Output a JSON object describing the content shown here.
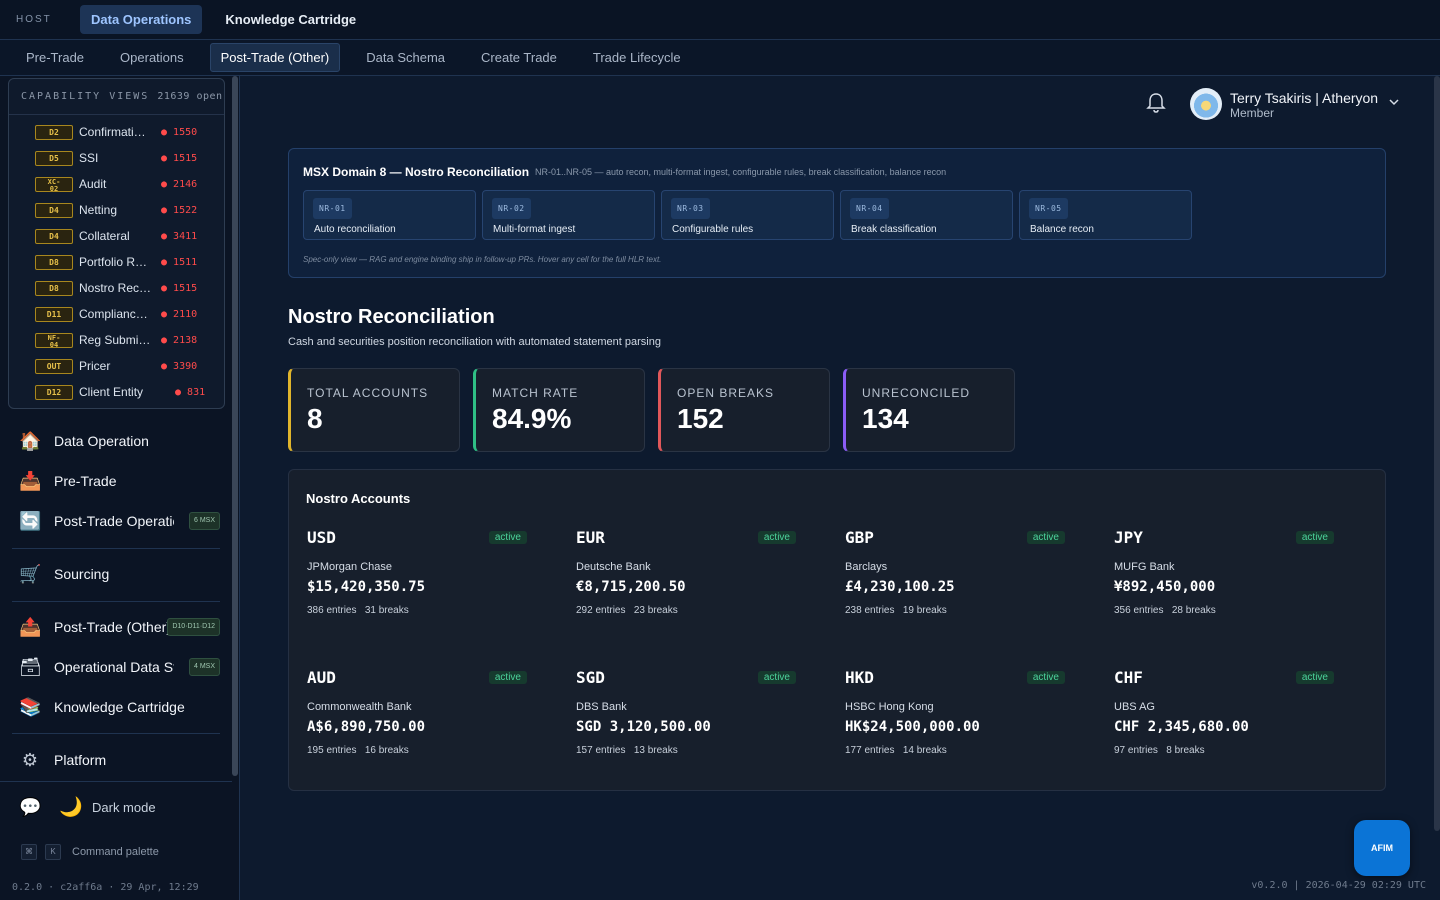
{
  "topbar": {
    "host_label": "HOST",
    "tabs": [
      {
        "label": "Data Operations",
        "active": true
      },
      {
        "label": "Knowledge Cartridge",
        "active": false
      }
    ]
  },
  "subnav": {
    "tabs": [
      {
        "label": "Pre-Trade",
        "active": false
      },
      {
        "label": "Operations",
        "active": false
      },
      {
        "label": "Post-Trade (Other)",
        "active": true
      },
      {
        "label": "Data Schema",
        "active": false
      },
      {
        "label": "Create Trade",
        "active": false
      },
      {
        "label": "Trade Lifecycle",
        "active": false
      }
    ]
  },
  "capability": {
    "title": "CAPABILITY VIEWS",
    "count": "21639 open",
    "items": [
      {
        "badge": "D2",
        "name": "Confirmati…",
        "count": "1550"
      },
      {
        "badge": "D5",
        "name": "SSI",
        "count": "1515"
      },
      {
        "badge_top": "XC-",
        "badge_bottom": "02",
        "name": "Audit",
        "count": "2146"
      },
      {
        "badge": "D4",
        "name": "Netting",
        "count": "1522"
      },
      {
        "badge": "D4",
        "name": "Collateral",
        "count": "3411"
      },
      {
        "badge": "D8",
        "name": "Portfolio R…",
        "count": "1511"
      },
      {
        "badge": "D8",
        "name": "Nostro Rec…",
        "count": "1515"
      },
      {
        "badge": "D11",
        "name": "Complianc…",
        "count": "2110"
      },
      {
        "badge_top": "NF-",
        "badge_bottom": "04",
        "name": "Reg Submi…",
        "count": "2138"
      },
      {
        "badge": "OUT",
        "name": "Pricer",
        "count": "3390"
      },
      {
        "badge": "D12",
        "name": "Client Entity",
        "count": "831"
      }
    ]
  },
  "nav": {
    "items": [
      {
        "label": "Data Operation",
        "icon": "house-icon",
        "glyph": "🏠",
        "tag": ""
      },
      {
        "label": "Pre-Trade",
        "icon": "inbox-tray-icon",
        "glyph": "📥",
        "tag": ""
      },
      {
        "label": "Post-Trade Operations",
        "icon": "refresh-icon",
        "glyph": "🔄",
        "tag": "6 MSX"
      },
      {
        "label": "Sourcing",
        "icon": "cart-icon",
        "glyph": "🛒",
        "tag": ""
      },
      {
        "label": "Post-Trade (Other)",
        "icon": "outbox-tray-icon",
        "glyph": "📤",
        "tag": "D10·D11·D12"
      },
      {
        "label": "Operational Data Store",
        "icon": "file-cabinet-icon",
        "glyph": "🗃",
        "tag": "4 MSX"
      },
      {
        "label": "Knowledge Cartridge",
        "icon": "books-icon",
        "glyph": "📚",
        "tag": ""
      },
      {
        "label": "Platform",
        "icon": "gear-icon",
        "glyph": "⚙",
        "tag": ""
      }
    ]
  },
  "footer": {
    "dark_mode_label": "Dark mode",
    "kbd1": "⌘",
    "kbd2": "K",
    "command_palette_label": "Command palette",
    "version": "0.2.0 · c2aff6a · 29 Apr, 12:29"
  },
  "user": {
    "name": "Terry Tsakiris | Atheryon",
    "role": "Member"
  },
  "msx": {
    "title": "MSX Domain 8 — Nostro Reconciliation",
    "subtitle": "NR-01..NR-05 — auto recon, multi-format ingest, configurable rules, break classification, balance recon",
    "cards": [
      {
        "code": "NR-01",
        "label": "Auto reconciliation"
      },
      {
        "code": "NR-02",
        "label": "Multi-format ingest"
      },
      {
        "code": "NR-03",
        "label": "Configurable rules"
      },
      {
        "code": "NR-04",
        "label": "Break classification"
      },
      {
        "code": "NR-05",
        "label": "Balance recon"
      }
    ],
    "note": "Spec-only view — RAG and engine binding ship in follow-up PRs. Hover any cell for the full HLR text."
  },
  "page": {
    "title": "Nostro Reconciliation",
    "subtitle": "Cash and securities position reconciliation with automated statement parsing"
  },
  "stats": [
    {
      "label": "TOTAL ACCOUNTS",
      "value": "8",
      "color": "#e0b52c"
    },
    {
      "label": "MATCH RATE",
      "value": "84.9%",
      "color": "#2fbf85"
    },
    {
      "label": "OPEN BREAKS",
      "value": "152",
      "color": "#e0575a"
    },
    {
      "label": "UNRECONCILED",
      "value": "134",
      "color": "#8b5cf6"
    }
  ],
  "accounts": {
    "title": "Nostro Accounts",
    "items": [
      {
        "currency": "USD",
        "status": "active",
        "bank": "JPMorgan Chase",
        "balance": "$15,420,350.75",
        "entries": "386 entries",
        "breaks": "31 breaks"
      },
      {
        "currency": "EUR",
        "status": "active",
        "bank": "Deutsche Bank",
        "balance": "€8,715,200.50",
        "entries": "292 entries",
        "breaks": "23 breaks"
      },
      {
        "currency": "GBP",
        "status": "active",
        "bank": "Barclays",
        "balance": "£4,230,100.25",
        "entries": "238 entries",
        "breaks": "19 breaks"
      },
      {
        "currency": "JPY",
        "status": "active",
        "bank": "MUFG Bank",
        "balance": "¥892,450,000",
        "entries": "356 entries",
        "breaks": "28 breaks"
      },
      {
        "currency": "AUD",
        "status": "active",
        "bank": "Commonwealth Bank",
        "balance": "A$6,890,750.00",
        "entries": "195 entries",
        "breaks": "16 breaks"
      },
      {
        "currency": "SGD",
        "status": "active",
        "bank": "DBS Bank",
        "balance": "SGD 3,120,500.00",
        "entries": "157 entries",
        "breaks": "13 breaks"
      },
      {
        "currency": "HKD",
        "status": "active",
        "bank": "HSBC Hong Kong",
        "balance": "HK$24,500,000.00",
        "entries": "177 entries",
        "breaks": "14 breaks"
      },
      {
        "currency": "CHF",
        "status": "active",
        "bank": "UBS AG",
        "balance": "CHF 2,345,680.00",
        "entries": "97 entries",
        "breaks": "8 breaks"
      }
    ]
  },
  "assistant_button": "AFIM",
  "version_right": "v0.2.0 | 2026-04-29 02:29 UTC"
}
